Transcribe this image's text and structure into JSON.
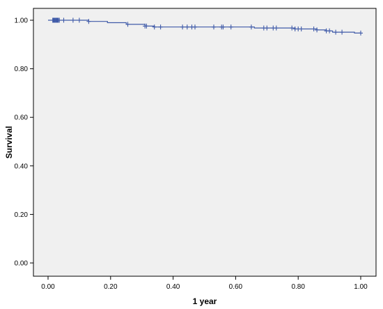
{
  "chart_data": {
    "type": "line",
    "title": "",
    "xlabel": "1 year",
    "ylabel": "Survival",
    "xlim": [
      0.0,
      1.0
    ],
    "ylim": [
      0.0,
      1.0
    ],
    "x_ticks": [
      "0.00",
      "0.20",
      "0.40",
      "0.60",
      "0.80",
      "1.00"
    ],
    "y_ticks": [
      "0.00",
      "0.20",
      "0.40",
      "0.60",
      "0.80",
      "1.00"
    ],
    "grid": false,
    "legend": "none",
    "plot_background": "#f0f0f0",
    "line_color": "#3f5aa8",
    "series": [
      {
        "steps": [
          [
            0.0,
            1.0
          ],
          [
            0.13,
            0.995
          ],
          [
            0.19,
            0.99
          ],
          [
            0.25,
            0.983
          ],
          [
            0.31,
            0.976
          ],
          [
            0.34,
            0.972
          ],
          [
            0.66,
            0.968
          ],
          [
            0.79,
            0.964
          ],
          [
            0.86,
            0.96
          ],
          [
            0.89,
            0.956
          ],
          [
            0.91,
            0.951
          ],
          [
            0.98,
            0.947
          ],
          [
            1.0,
            0.947
          ]
        ],
        "censored": [
          0.015,
          0.017,
          0.019,
          0.021,
          0.023,
          0.025,
          0.027,
          0.029,
          0.031,
          0.033,
          0.036,
          0.05,
          0.08,
          0.1,
          0.13,
          0.255,
          0.31,
          0.315,
          0.34,
          0.36,
          0.43,
          0.445,
          0.46,
          0.47,
          0.53,
          0.555,
          0.56,
          0.585,
          0.65,
          0.69,
          0.7,
          0.72,
          0.73,
          0.78,
          0.79,
          0.8,
          0.81,
          0.85,
          0.86,
          0.89,
          0.9,
          0.92,
          0.94,
          1.0
        ]
      }
    ]
  }
}
